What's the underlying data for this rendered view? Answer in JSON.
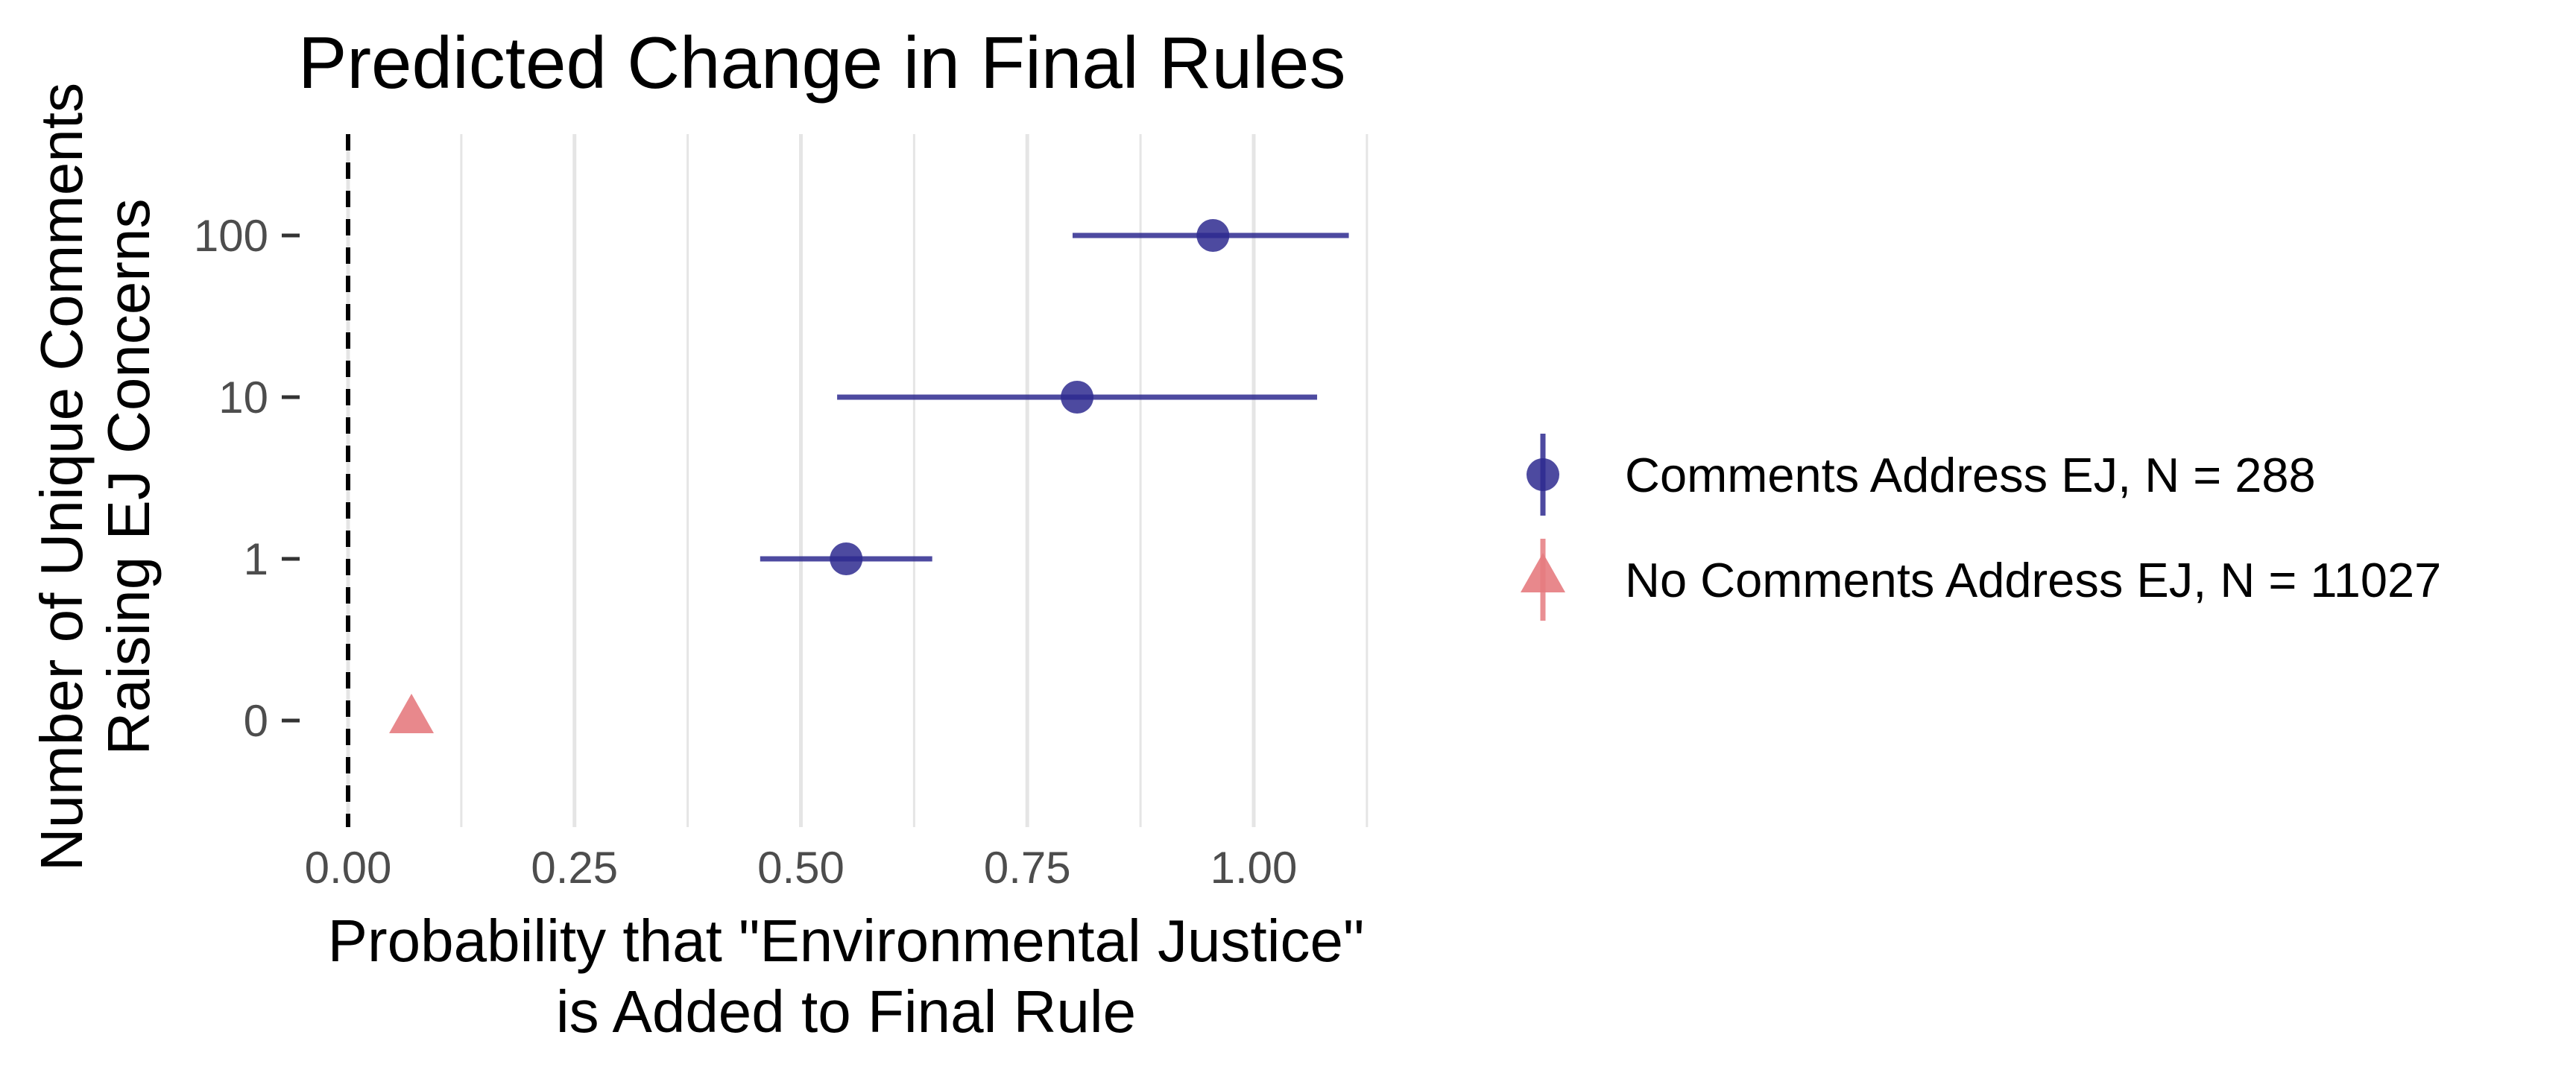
{
  "chart_data": {
    "type": "scatter",
    "title": "Predicted Change in Final Rules",
    "xlabel_lines": [
      "Probability that \"Environmental Justice\"",
      "is Added to Final Rule"
    ],
    "ylabel_lines": [
      "Number of Unique Comments",
      "Raising EJ Concerns"
    ],
    "x_ticks": [
      "0.00",
      "0.25",
      "0.50",
      "0.75",
      "1.00"
    ],
    "x_tick_values": [
      0,
      0.25,
      0.5,
      0.75,
      1.0
    ],
    "x_minor_gridlines": [
      0.125,
      0.375,
      0.625,
      0.875,
      1.125
    ],
    "xlim": [
      0,
      1.125
    ],
    "y_categories": [
      "0",
      "1",
      "10",
      "100"
    ],
    "reference_line": {
      "x": 0,
      "style": "dashed"
    },
    "grid": "vertical only",
    "legend_position": "right",
    "series": [
      {
        "name": "Comments Address EJ, N = 288",
        "color": "#2e2a8f",
        "marker": "circle",
        "points": [
          {
            "y": "1",
            "x": 0.55,
            "lower": 0.455,
            "upper": 0.645
          },
          {
            "y": "10",
            "x": 0.805,
            "lower": 0.54,
            "upper": 1.07
          },
          {
            "y": "100",
            "x": 0.955,
            "lower": 0.8,
            "upper": 1.105
          }
        ]
      },
      {
        "name": "No Comments Address EJ, N = 11027",
        "color": "#e57b80",
        "marker": "triangle",
        "points": [
          {
            "y": "0",
            "x": 0.07,
            "lower": 0.07,
            "upper": 0.07
          }
        ]
      }
    ]
  }
}
